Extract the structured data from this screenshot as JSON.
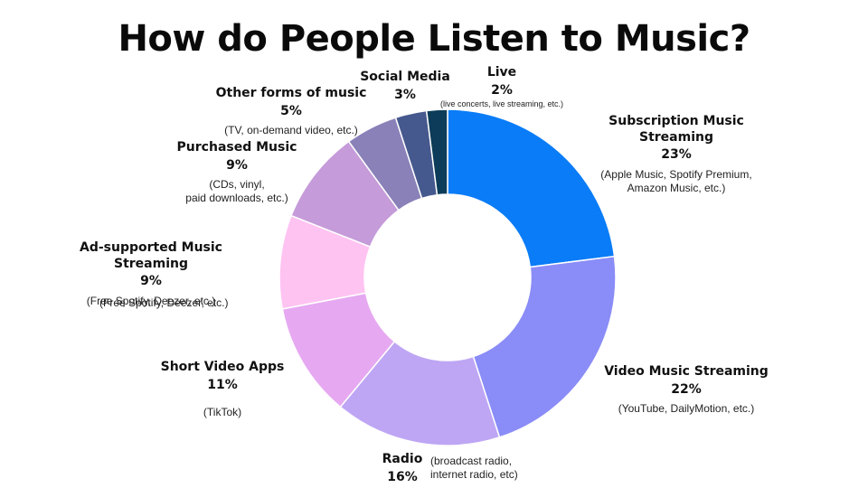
{
  "chart_data": {
    "type": "pie",
    "title": "How do People Listen to Music?",
    "center_x": 495,
    "center_y": 307,
    "outer_r": 186,
    "inner_r": 92,
    "slices": [
      {
        "label": "Subscription Music Streaming",
        "percent_label": "23%",
        "value": 23,
        "note": "(Apple Music, Spotify Premium,\nAmazon Music, etc.)",
        "color": "#0A7CF7"
      },
      {
        "label": "Video Music Streaming",
        "percent_label": "22%",
        "value": 22,
        "note": "(YouTube, DailyMotion, etc.)",
        "color": "#8A8CF7"
      },
      {
        "label": "Radio",
        "percent_label": "16%",
        "value": 16,
        "note": "(broadcast radio,\ninternet radio, etc)",
        "color": "#BEA6F4"
      },
      {
        "label": "Short Video Apps",
        "percent_label": "11%",
        "value": 11,
        "note": "(TikTok)",
        "color": "#E6A9F1"
      },
      {
        "label": "Ad-supported Music Streaming",
        "percent_label": "9%",
        "value": 9,
        "note": "(Free Spotify, Deezer, etc.)",
        "note_extra": "(Free Spotify, Deezer, etc.)",
        "color": "#FFC3F2"
      },
      {
        "label": "Purchased Music",
        "percent_label": "9%",
        "value": 9,
        "note": "(CDs, vinyl,\npaid downloads, etc.)",
        "color": "#C59BD9"
      },
      {
        "label": "Other forms of music",
        "percent_label": "5%",
        "value": 5,
        "note": "(TV, on-demand video, etc.)",
        "color": "#8981B8"
      },
      {
        "label": "Social Media",
        "percent_label": "3%",
        "value": 3,
        "note": "",
        "color": "#46598E"
      },
      {
        "label": "Live",
        "percent_label": "2%",
        "value": 2,
        "note": "(live concerts, live streaming, etc.)",
        "color": "#0C3C59"
      }
    ]
  }
}
